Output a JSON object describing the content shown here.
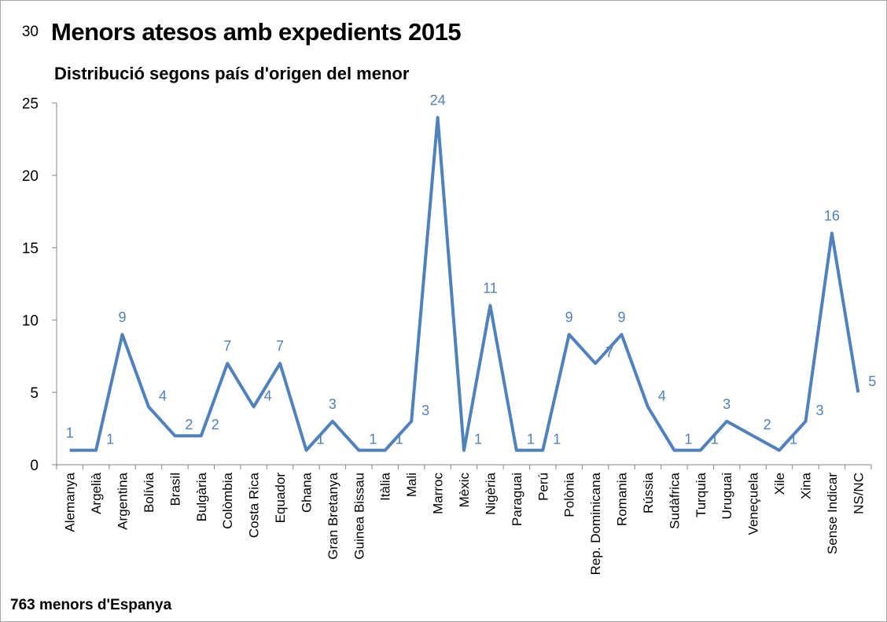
{
  "chart_data": {
    "type": "line",
    "title": "Menors atesos amb expedients 2015",
    "subtitle": "Distribució segons país d'origen del menor",
    "footnote": "763 menors d'Espanya",
    "xlabel": "",
    "ylabel": "",
    "ylim": [
      0,
      30
    ],
    "yticks": [
      0,
      5,
      10,
      15,
      20,
      25,
      30
    ],
    "grid": false,
    "legend": "none",
    "series_color": "#4f81bd",
    "categories": [
      "Alemanya",
      "Argelià",
      "Argentina",
      "Bolívia",
      "Brasil",
      "Bulgària",
      "Colòmbia",
      "Costa Rica",
      "Equador",
      "Ghana",
      "Gran Bretanya",
      "Guinea Bissau",
      "Itàlia",
      "Mali",
      "Marroc",
      "Mèxic",
      "Nigèria",
      "Paraguai",
      "Perú",
      "Polònia",
      "Rep. Dominicana",
      "Romania",
      "Rússia",
      "Sudàfrica",
      "Turquia",
      "Uruguai",
      "Veneçuela",
      "Xile",
      "Xina",
      "Sense Indicar",
      "NS/NC"
    ],
    "values": [
      1,
      1,
      9,
      4,
      2,
      2,
      7,
      4,
      7,
      1,
      3,
      1,
      1,
      3,
      24,
      1,
      11,
      1,
      1,
      9,
      7,
      9,
      4,
      1,
      1,
      3,
      2,
      1,
      3,
      16,
      5
    ]
  }
}
